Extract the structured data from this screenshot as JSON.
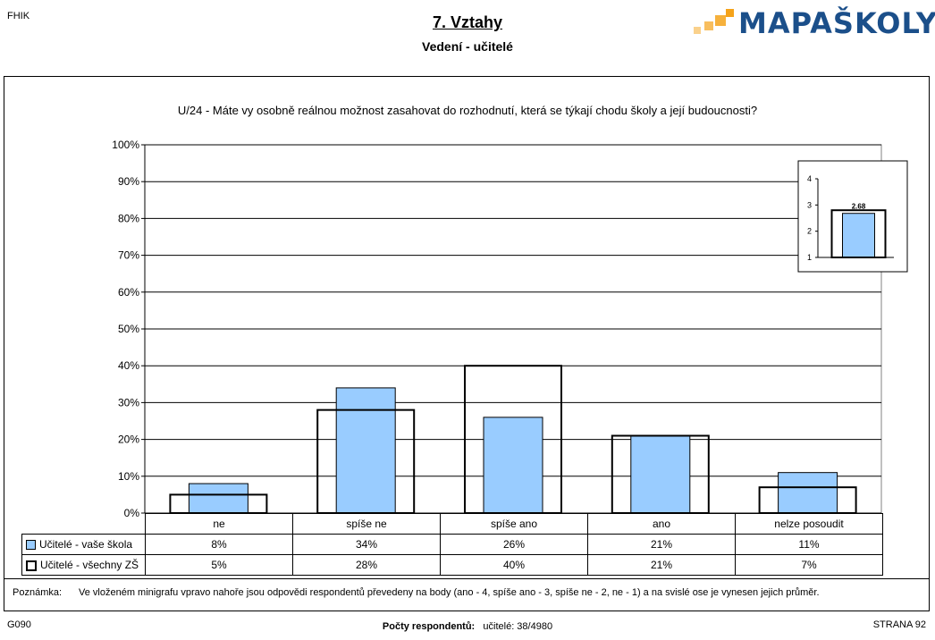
{
  "header": {
    "code": "FHIK",
    "title": "7. Vztahy",
    "subtitle": "Vedení - učitelé",
    "logo_text": "MAPAŠKOLY"
  },
  "colors": {
    "school_bar": "#99ccff",
    "all_bar": "#ffffff",
    "logo_blue": "#1b4f8a",
    "logo_orange": "#f5a31a"
  },
  "chart_data": [
    {
      "type": "bar",
      "title": "U/24 - Máte vy osobně reálnou možnost zasahovat do rozhodnutí, která se týkají chodu školy a její budoucnosti?",
      "categories": [
        "ne",
        "spíše ne",
        "spíše ano",
        "ano",
        "nelze posoudit"
      ],
      "series": [
        {
          "name": "Učitelé - vaše škola",
          "values": [
            8,
            34,
            26,
            21,
            11
          ],
          "labels": [
            "8%",
            "34%",
            "26%",
            "21%",
            "11%"
          ]
        },
        {
          "name": "Učitelé - všechny ZŠ",
          "values": [
            5,
            28,
            40,
            21,
            7
          ],
          "labels": [
            "5%",
            "28%",
            "40%",
            "21%",
            "7%"
          ]
        }
      ],
      "ylim": [
        0,
        100
      ],
      "yticks": [
        "0%",
        "10%",
        "20%",
        "30%",
        "40%",
        "50%",
        "60%",
        "70%",
        "80%",
        "90%",
        "100%"
      ],
      "grid": true,
      "legend": "table-below"
    },
    {
      "type": "bar",
      "categories": [
        ""
      ],
      "series": [
        {
          "name": "Učitelé - vaše škola",
          "values": [
            2.68
          ],
          "labels": [
            "2.68"
          ]
        },
        {
          "name": "Učitelé - všechny ZŠ",
          "values": [
            2.8
          ]
        }
      ],
      "ylim": [
        1,
        4
      ],
      "yticks": [
        "1",
        "2",
        "3",
        "4"
      ],
      "legend": "none"
    }
  ],
  "note": {
    "label": "Poznámka:",
    "text": "Ve vloženém minigrafu vpravo nahoře jsou odpovědi respondentů převedeny na body (ano - 4, spíše ano - 3, spíše ne - 2, ne - 1) a na svislé ose je vynesen jejich průměr."
  },
  "footer": {
    "left": "G090",
    "center_label": "Počty respondentů:",
    "center_value": "učitelé: 38/4980",
    "right": "STRANA 92"
  }
}
